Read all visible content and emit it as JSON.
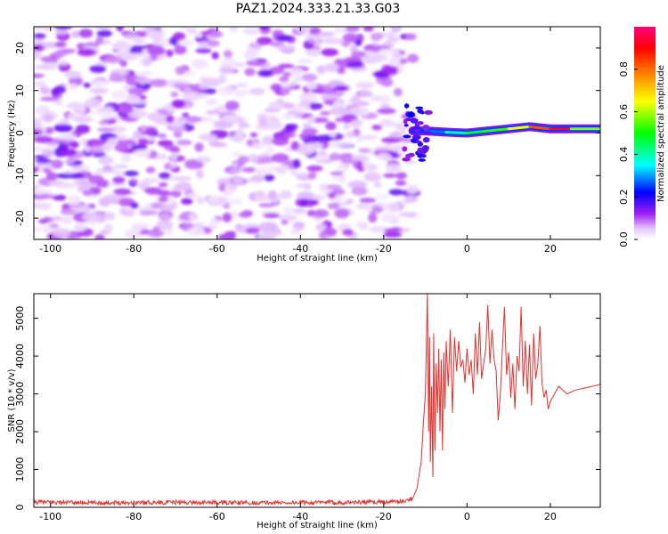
{
  "figure": {
    "title": "PAZ1.2024.333.21.33.G03"
  },
  "chart_data": [
    {
      "type": "heatmap",
      "title": "PAZ1.2024.333.21.33.G03",
      "xlabel": "Height of straight line (km)",
      "ylabel": "Frequency (Hz)",
      "xlim": [
        -104,
        32
      ],
      "ylim": [
        -25,
        25
      ],
      "xticks": [
        -100,
        -80,
        -60,
        -40,
        -20,
        0,
        20
      ],
      "yticks": [
        -20,
        -10,
        0,
        10,
        20
      ],
      "colorbar": {
        "label": "Normalized spectral amplitude",
        "range": [
          0,
          1
        ],
        "ticks": [
          "0.0",
          "0.2",
          "0.4",
          "0.6",
          "0.8"
        ],
        "colormap": [
          "#ffffff",
          "#a020f0",
          "#0000ff",
          "#00ffff",
          "#00ff00",
          "#ffff00",
          "#ff8000",
          "#ff0000",
          "#ff0080"
        ]
      },
      "noise_region": {
        "x_range": [
          -104,
          -13
        ],
        "amplitude_range": [
          0.02,
          0.15
        ],
        "dominant_color": "#a020f0"
      },
      "signal_track": [
        {
          "x": -13,
          "frequency": 0.5,
          "amplitude": 0.15
        },
        {
          "x": -10,
          "frequency": 0.5,
          "amplitude": 0.2
        },
        {
          "x": -5,
          "frequency": 0.2,
          "amplitude": 0.35
        },
        {
          "x": 0,
          "frequency": 0.0,
          "amplitude": 0.45
        },
        {
          "x": 5,
          "frequency": 0.5,
          "amplitude": 0.5
        },
        {
          "x": 10,
          "frequency": 1.0,
          "amplitude": 0.55
        },
        {
          "x": 15,
          "frequency": 1.5,
          "amplitude": 0.75
        },
        {
          "x": 20,
          "frequency": 1.0,
          "amplitude": 0.9
        },
        {
          "x": 25,
          "frequency": 1.0,
          "amplitude": 0.95
        },
        {
          "x": 32,
          "frequency": 1.0,
          "amplitude": 0.2
        }
      ]
    },
    {
      "type": "line",
      "xlabel": "Height of straight line (km)",
      "ylabel": "SNR (10 * v/v)",
      "xlim": [
        -104,
        32
      ],
      "ylim": [
        0,
        5650
      ],
      "xticks": [
        -100,
        -80,
        -60,
        -40,
        -20,
        0,
        20
      ],
      "yticks": [
        0,
        1000,
        2000,
        3000,
        4000,
        5000
      ],
      "series": [
        {
          "color": "#e8302c",
          "x": [
            -104,
            -90,
            -70,
            -50,
            -30,
            -15,
            -13,
            -12,
            -11,
            -10.5,
            -10,
            -9.5,
            -9.2,
            -9,
            -8.8,
            -8.5,
            -8.2,
            -8,
            -7.7,
            -7.4,
            -7.1,
            -6.8,
            -6.5,
            -6.2,
            -5.9,
            -5.6,
            -5.3,
            -5,
            -4.5,
            -4,
            -3.5,
            -3,
            -2.5,
            -2,
            -1.5,
            -1,
            -0.5,
            0,
            0.5,
            1,
            1.5,
            2,
            2.5,
            3,
            3.5,
            4,
            4.5,
            5,
            5.5,
            6,
            6.5,
            7,
            7.5,
            8,
            8.5,
            9,
            9.5,
            10,
            10.5,
            11,
            11.5,
            12,
            12.5,
            13,
            13.5,
            14,
            14.5,
            15,
            15.5,
            16,
            16.5,
            17,
            17.5,
            18,
            18.5,
            19,
            19.5,
            20,
            21,
            22,
            23,
            24,
            26,
            28,
            30,
            32
          ],
          "y": [
            140,
            120,
            130,
            120,
            130,
            150,
            250,
            500,
            1200,
            2200,
            3000,
            5650,
            2000,
            4500,
            1200,
            3200,
            800,
            4600,
            1500,
            3800,
            2500,
            4200,
            2000,
            3900,
            1500,
            4100,
            2600,
            4400,
            3200,
            4700,
            2500,
            4500,
            3600,
            4400,
            3700,
            3900,
            3300,
            4200,
            3500,
            3900,
            3000,
            4600,
            3500,
            4900,
            3400,
            3800,
            4200,
            5350,
            3800,
            4700,
            3900,
            3600,
            2300,
            3000,
            4200,
            5300,
            3500,
            4100,
            2900,
            3800,
            2600,
            4000,
            3600,
            5300,
            3200,
            4400,
            3000,
            4300,
            2700,
            4600,
            3400,
            3800,
            4800,
            3300,
            2900,
            3100,
            2600,
            2800,
            3000,
            3200,
            3100,
            3000,
            3100,
            3150,
            3200,
            3250
          ]
        }
      ]
    }
  ]
}
